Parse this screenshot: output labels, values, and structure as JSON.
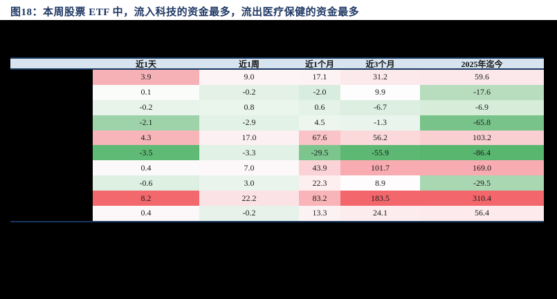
{
  "title": "图18：本周股票 ETF 中，流入科技的资金最多，流出医疗保健的资金最多",
  "colors": {
    "title_navy": "#1f3864",
    "table_border_navy": "#17375e",
    "header_bg": "#d7e4f0",
    "redacted_black": "#000000",
    "page_white": "#ffffff",
    "heat_red_max": "#f3676c",
    "heat_green_max": "#58b66f"
  },
  "table": {
    "columns": [
      "近1天",
      "近1周",
      "近1个月",
      "近3个月",
      "2025年迄今"
    ],
    "row_label_state": "redacted-black",
    "rows": [
      {
        "cells": [
          {
            "v": "3.9",
            "bg": "#f5b1b6"
          },
          {
            "v": "9.0",
            "bg": "#fdf4f6"
          },
          {
            "v": "17.1",
            "bg": "#fdf2f4"
          },
          {
            "v": "31.2",
            "bg": "#fce9eb"
          },
          {
            "v": "59.6",
            "bg": "#fce8ea"
          }
        ]
      },
      {
        "cells": [
          {
            "v": "0.1",
            "bg": "#fafcfa"
          },
          {
            "v": "-0.2",
            "bg": "#e4f1e7"
          },
          {
            "v": "-2.0",
            "bg": "#d9edde"
          },
          {
            "v": "9.9",
            "bg": "#fefdfe"
          },
          {
            "v": "-17.6",
            "bg": "#b7ddbe"
          }
        ]
      },
      {
        "cells": [
          {
            "v": "-0.2",
            "bg": "#e8f4ea"
          },
          {
            "v": "0.8",
            "bg": "#eaf5ec"
          },
          {
            "v": "0.6",
            "bg": "#e4f2e7"
          },
          {
            "v": "-6.7",
            "bg": "#dcefe0"
          },
          {
            "v": "-6.9",
            "bg": "#d7edda"
          }
        ]
      },
      {
        "cells": [
          {
            "v": "-2.1",
            "bg": "#9ed3a9"
          },
          {
            "v": "-2.9",
            "bg": "#e3f2e7"
          },
          {
            "v": "4.5",
            "bg": "#ecf6ee"
          },
          {
            "v": "-1.3",
            "bg": "#e9f4ec"
          },
          {
            "v": "-65.8",
            "bg": "#77c389"
          }
        ]
      },
      {
        "cells": [
          {
            "v": "4.3",
            "bg": "#f7b5ba"
          },
          {
            "v": "17.0",
            "bg": "#fdf0f2"
          },
          {
            "v": "67.6",
            "bg": "#f9c3c7"
          },
          {
            "v": "56.2",
            "bg": "#fbd9db"
          },
          {
            "v": "103.2",
            "bg": "#facfd2"
          }
        ]
      },
      {
        "cells": [
          {
            "v": "-3.5",
            "bg": "#5eba74"
          },
          {
            "v": "-3.3",
            "bg": "#e1f1e5"
          },
          {
            "v": "-29.5",
            "bg": "#7cc68d"
          },
          {
            "v": "-55.9",
            "bg": "#5db873"
          },
          {
            "v": "-86.4",
            "bg": "#58b66f"
          }
        ]
      },
      {
        "cells": [
          {
            "v": "0.4",
            "bg": "#fcf9fa"
          },
          {
            "v": "7.0",
            "bg": "#fcf8f9"
          },
          {
            "v": "43.9",
            "bg": "#fbd3d6"
          },
          {
            "v": "101.7",
            "bg": "#f8abb0"
          },
          {
            "v": "169.0",
            "bg": "#f8acb1"
          }
        ]
      },
      {
        "cells": [
          {
            "v": "-0.6",
            "bg": "#ddf0e2"
          },
          {
            "v": "3.0",
            "bg": "#e9f4ec"
          },
          {
            "v": "22.3",
            "bg": "#fdeef0"
          },
          {
            "v": "8.9",
            "bg": "#fefcfd"
          },
          {
            "v": "-29.5",
            "bg": "#a8d7b1"
          }
        ]
      },
      {
        "cells": [
          {
            "v": "8.2",
            "bg": "#f3686d"
          },
          {
            "v": "22.2",
            "bg": "#fbe2e4"
          },
          {
            "v": "83.2",
            "bg": "#f8b4b9"
          },
          {
            "v": "183.5",
            "bg": "#f3676c"
          },
          {
            "v": "310.4",
            "bg": "#f3676c"
          }
        ]
      },
      {
        "cells": [
          {
            "v": "0.4",
            "bg": "#fcf7f8"
          },
          {
            "v": "-0.2",
            "bg": "#e7f3ea"
          },
          {
            "v": "13.3",
            "bg": "#fdf2f3"
          },
          {
            "v": "24.1",
            "bg": "#fcecee"
          },
          {
            "v": "56.4",
            "bg": "#fceaec"
          }
        ]
      }
    ]
  },
  "chart_data": {
    "type": "table",
    "title": "图18：本周股票 ETF 中，流入科技的资金最多，流出医疗保健的资金最多",
    "columns": [
      "近1天",
      "近1周",
      "近1个月",
      "近3个月",
      "2025年迄今"
    ],
    "row_labels": "redacted (covered by black block)",
    "rows": [
      [
        3.9,
        9.0,
        17.1,
        31.2,
        59.6
      ],
      [
        0.1,
        -0.2,
        -2.0,
        9.9,
        -17.6
      ],
      [
        -0.2,
        0.8,
        0.6,
        -6.7,
        -6.9
      ],
      [
        -2.1,
        -2.9,
        4.5,
        -1.3,
        -65.8
      ],
      [
        4.3,
        17.0,
        67.6,
        56.2,
        103.2
      ],
      [
        -3.5,
        -3.3,
        -29.5,
        -55.9,
        -86.4
      ],
      [
        0.4,
        7.0,
        43.9,
        101.7,
        169.0
      ],
      [
        -0.6,
        3.0,
        22.3,
        8.9,
        -29.5
      ],
      [
        8.2,
        22.2,
        83.2,
        183.5,
        310.4
      ],
      [
        0.4,
        -0.2,
        13.3,
        24.1,
        56.4
      ]
    ],
    "conditional_format": "red = inflow (positive, larger = deeper red), green = outflow (negative, larger magnitude = deeper green)"
  }
}
